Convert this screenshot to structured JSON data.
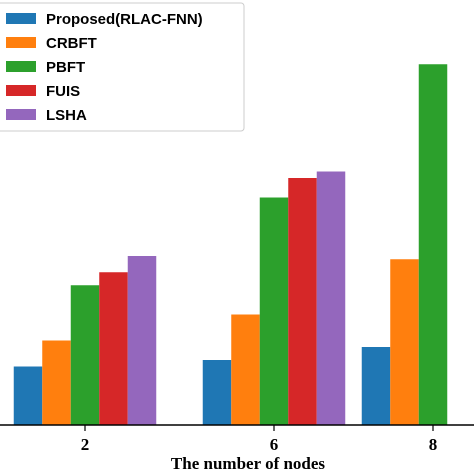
{
  "chart_data": {
    "type": "bar",
    "title": "",
    "xlabel": "The number of nodes",
    "ylabel": "",
    "categories": [
      "2",
      "6",
      "8"
    ],
    "ylim": [
      0,
      60
    ],
    "grid": false,
    "legend_position": "top-left",
    "series": [
      {
        "name": "Proposed(RLAC-FNN)",
        "color": "#1f77b4",
        "values": [
          9,
          10,
          12
        ]
      },
      {
        "name": "CRBFT",
        "color": "#ff7f0e",
        "values": [
          13,
          17,
          25.5
        ]
      },
      {
        "name": "PBFT",
        "color": "#2ca02c",
        "values": [
          21.5,
          35,
          55.5
        ]
      },
      {
        "name": "FUIS",
        "color": "#d62728",
        "values": [
          23.5,
          38,
          0
        ]
      },
      {
        "name": "LSHA",
        "color": "#9467bd",
        "values": [
          26,
          39,
          0
        ]
      }
    ]
  }
}
